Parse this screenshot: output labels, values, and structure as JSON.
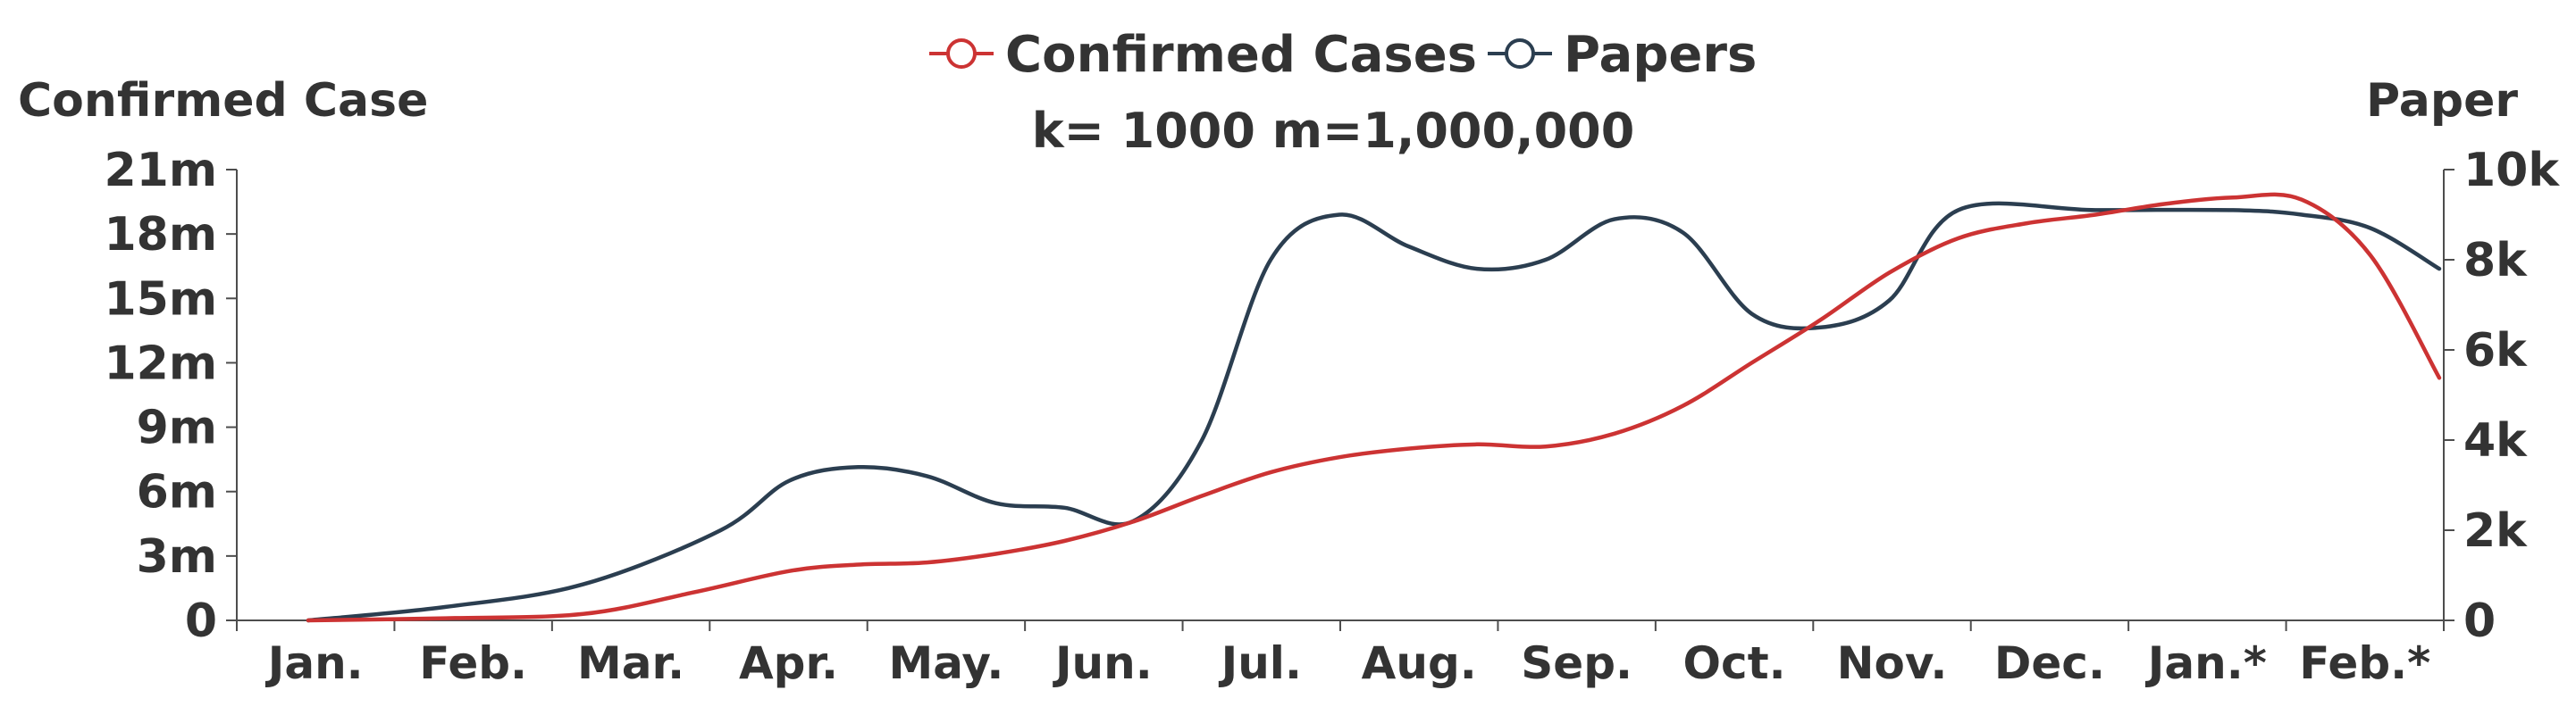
{
  "chart_data": {
    "type": "line",
    "categories": [
      "Jan.",
      "Feb.",
      "Mar.",
      "Apr.",
      "May.",
      "Jun.",
      "Jul.",
      "Aug.",
      "Sep.",
      "Oct.",
      "Nov.",
      "Dec.",
      "Jan.*",
      "Feb.*"
    ],
    "legend_position": "top-center",
    "grid": false,
    "note": "k= 1000  m=1,000,000",
    "left_axis": {
      "title": "Confirmed Case",
      "ylim": [
        0,
        21000000
      ],
      "ticks": [
        0,
        3000000,
        6000000,
        9000000,
        12000000,
        15000000,
        18000000,
        21000000
      ],
      "tick_labels": [
        "0",
        "3m",
        "6m",
        "9m",
        "12m",
        "15m",
        "18m",
        "21m"
      ]
    },
    "right_axis": {
      "title": "Paper",
      "ylim": [
        0,
        10000
      ],
      "ticks": [
        0,
        2000,
        4000,
        6000,
        8000,
        10000
      ],
      "tick_labels": [
        "0",
        "2k",
        "4k",
        "6k",
        "8k",
        "10k"
      ]
    },
    "series": [
      {
        "name": "Confirmed Cases",
        "axis": "left",
        "color": "#cc3333",
        "values": [
          {
            "x": 0.0,
            "y": 0
          },
          {
            "x": 1.0,
            "y": 100000
          },
          {
            "x": 2.0,
            "y": 300000
          },
          {
            "x": 2.8,
            "y": 1300000
          },
          {
            "x": 3.5,
            "y": 2300000
          },
          {
            "x": 4.0,
            "y": 2600000
          },
          {
            "x": 4.5,
            "y": 2700000
          },
          {
            "x": 5.0,
            "y": 3100000
          },
          {
            "x": 5.5,
            "y": 3700000
          },
          {
            "x": 6.0,
            "y": 4600000
          },
          {
            "x": 6.5,
            "y": 5800000
          },
          {
            "x": 7.0,
            "y": 6900000
          },
          {
            "x": 7.5,
            "y": 7600000
          },
          {
            "x": 8.0,
            "y": 8000000
          },
          {
            "x": 8.5,
            "y": 8200000
          },
          {
            "x": 9.0,
            "y": 8100000
          },
          {
            "x": 9.5,
            "y": 8700000
          },
          {
            "x": 10.0,
            "y": 10000000
          },
          {
            "x": 10.5,
            "y": 12000000
          },
          {
            "x": 11.0,
            "y": 14000000
          },
          {
            "x": 11.5,
            "y": 16200000
          },
          {
            "x": 12.0,
            "y": 17800000
          },
          {
            "x": 12.5,
            "y": 18500000
          },
          {
            "x": 13.0,
            "y": 18900000
          },
          {
            "x": 13.5,
            "y": 19400000
          },
          {
            "x": 14.0,
            "y": 19700000
          },
          {
            "x": 14.5,
            "y": 19600000
          },
          {
            "x": 15.0,
            "y": 17000000
          },
          {
            "x": 15.5,
            "y": 11300000
          }
        ]
      },
      {
        "name": "Papers",
        "axis": "right",
        "color": "#2b3e50",
        "values": [
          {
            "x": 0.0,
            "y": 0
          },
          {
            "x": 1.0,
            "y": 300
          },
          {
            "x": 2.0,
            "y": 800
          },
          {
            "x": 3.0,
            "y": 2000
          },
          {
            "x": 3.5,
            "y": 3100
          },
          {
            "x": 4.0,
            "y": 3400
          },
          {
            "x": 4.5,
            "y": 3200
          },
          {
            "x": 5.0,
            "y": 2600
          },
          {
            "x": 5.5,
            "y": 2500
          },
          {
            "x": 6.0,
            "y": 2200
          },
          {
            "x": 6.5,
            "y": 4000
          },
          {
            "x": 7.0,
            "y": 8000
          },
          {
            "x": 7.5,
            "y": 9000
          },
          {
            "x": 8.0,
            "y": 8300
          },
          {
            "x": 8.5,
            "y": 7800
          },
          {
            "x": 9.0,
            "y": 8000
          },
          {
            "x": 9.5,
            "y": 8900
          },
          {
            "x": 10.0,
            "y": 8600
          },
          {
            "x": 10.5,
            "y": 6800
          },
          {
            "x": 11.0,
            "y": 6500
          },
          {
            "x": 11.5,
            "y": 7100
          },
          {
            "x": 12.0,
            "y": 9100
          },
          {
            "x": 13.0,
            "y": 9100
          },
          {
            "x": 14.0,
            "y": 9100
          },
          {
            "x": 14.5,
            "y": 9000
          },
          {
            "x": 15.0,
            "y": 8700
          },
          {
            "x": 15.5,
            "y": 7800
          }
        ]
      }
    ]
  }
}
